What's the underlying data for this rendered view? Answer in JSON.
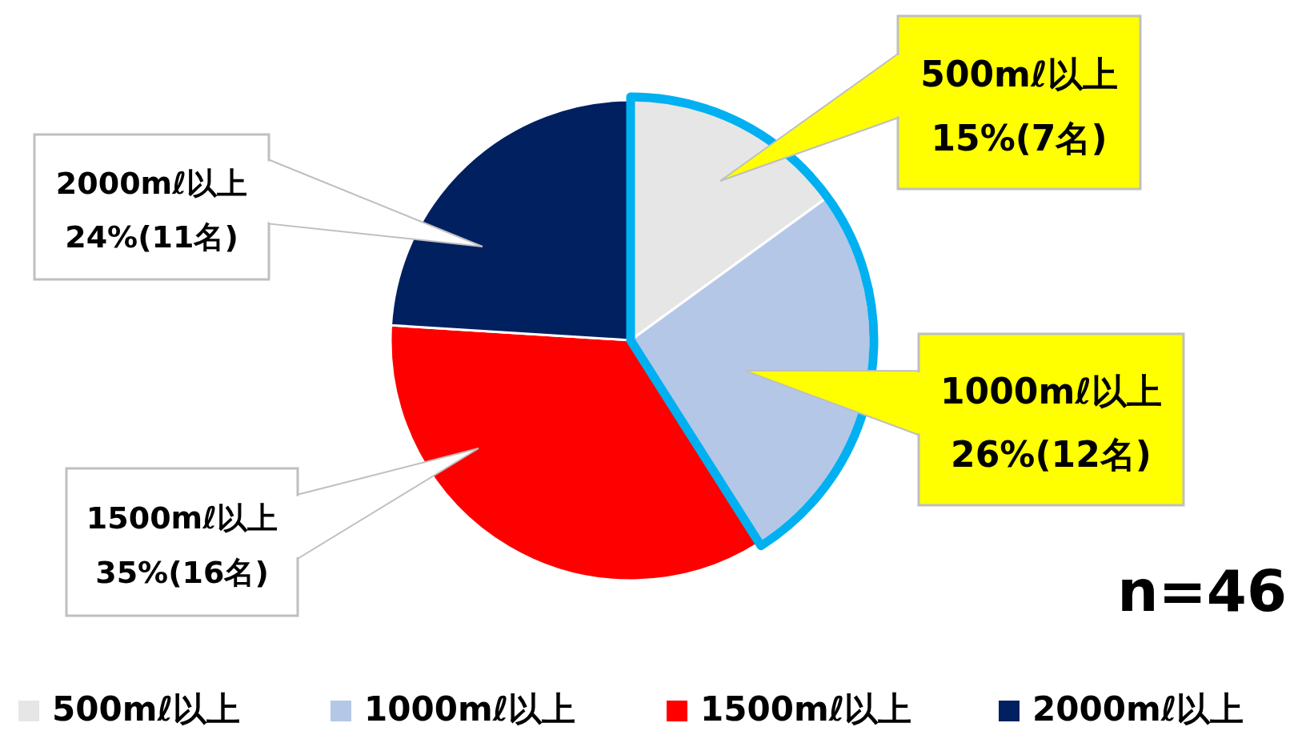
{
  "chart_data": {
    "type": "pie",
    "categories": [
      "500mℓ以上",
      "1000mℓ以上",
      "1500mℓ以上",
      "2000mℓ以上"
    ],
    "values": [
      15,
      26,
      35,
      24
    ],
    "value_labels": [
      "15%(7名)",
      "26%(12名)",
      "35%(16名)",
      "24%(11名)"
    ],
    "colors": [
      "#e6e6e6",
      "#b4c7e7",
      "#ff0000",
      "#002060"
    ],
    "legend": "bottom",
    "annotations": [
      "n=46"
    ]
  }
}
